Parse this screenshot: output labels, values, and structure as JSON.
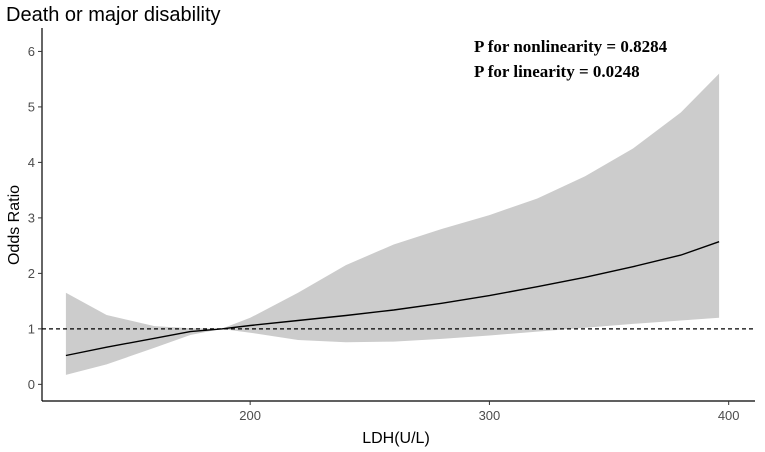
{
  "chart_data": {
    "type": "line",
    "title": "Death or major disability",
    "xlabel": "LDH(U/L)",
    "ylabel": "Odds Ratio",
    "xlim": [
      113,
      411
    ],
    "ylim": [
      -0.3,
      6.35
    ],
    "x_ticks": [
      200,
      300,
      400
    ],
    "y_ticks": [
      0,
      1,
      2,
      3,
      4,
      5,
      6
    ],
    "reference_line": {
      "y": 1,
      "style": "dashed"
    },
    "annotations": [
      "P for nonlinearity = 0.8284",
      "P for linearity = 0.0248"
    ],
    "series": [
      {
        "name": "Odds Ratio",
        "x": [
          123,
          140,
          160,
          175,
          188,
          200,
          220,
          240,
          260,
          280,
          300,
          320,
          340,
          360,
          380,
          396
        ],
        "values": [
          0.52,
          0.67,
          0.83,
          0.95,
          1.0,
          1.06,
          1.15,
          1.24,
          1.34,
          1.46,
          1.6,
          1.76,
          1.93,
          2.12,
          2.33,
          2.57
        ]
      },
      {
        "name": "95% CI upper",
        "x": [
          123,
          140,
          160,
          175,
          188,
          200,
          220,
          240,
          260,
          280,
          300,
          320,
          340,
          360,
          380,
          396
        ],
        "values": [
          1.65,
          1.25,
          1.05,
          1.01,
          1.0,
          1.2,
          1.65,
          2.15,
          2.52,
          2.8,
          3.05,
          3.35,
          3.75,
          4.25,
          4.9,
          5.6
        ]
      },
      {
        "name": "95% CI lower",
        "x": [
          123,
          140,
          160,
          175,
          188,
          200,
          220,
          240,
          260,
          280,
          300,
          320,
          340,
          360,
          380,
          396
        ],
        "values": [
          0.17,
          0.36,
          0.66,
          0.89,
          1.0,
          0.93,
          0.8,
          0.76,
          0.77,
          0.82,
          0.88,
          0.95,
          1.02,
          1.09,
          1.15,
          1.2
        ]
      }
    ],
    "colors": {
      "ci_band": "#cccccc",
      "line": "#000000",
      "reference": "#000000"
    }
  }
}
